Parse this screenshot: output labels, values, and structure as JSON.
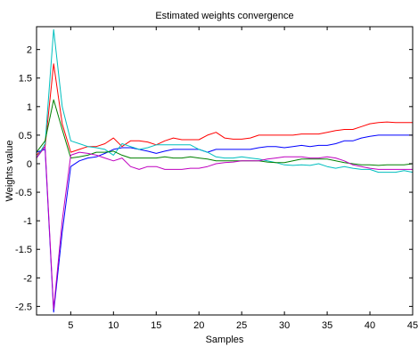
{
  "chart_data": {
    "type": "line",
    "title": "Estimated weights convergence",
    "xlabel": "Samples",
    "ylabel": "Weights value",
    "xlim": [
      1,
      45
    ],
    "ylim": [
      -2.65,
      2.4
    ],
    "grid": false,
    "xticks": [
      5,
      10,
      15,
      20,
      25,
      30,
      35,
      40,
      45
    ],
    "yticks": [
      2,
      1.5,
      1,
      0.5,
      0,
      -0.5,
      -1,
      -1.5,
      -2,
      -2.5
    ],
    "xtick_labels": [
      "5",
      "10",
      "15",
      "20",
      "25",
      "30",
      "35",
      "40",
      "45"
    ],
    "ytick_labels": [
      "2",
      "1.5",
      "1",
      "0.5",
      "0",
      "-0.5",
      "-1",
      "-1.5",
      "-2",
      "-2.5"
    ],
    "series": [
      {
        "color": "#ff0000",
        "x": [
          1,
          2,
          3,
          4,
          5,
          6,
          7,
          8,
          9,
          10,
          11,
          12,
          13,
          14,
          15,
          16,
          17,
          18,
          19,
          20,
          21,
          22,
          23,
          24,
          25,
          26,
          27,
          28,
          29,
          30,
          31,
          32,
          33,
          34,
          35,
          36,
          37,
          38,
          39,
          40,
          41,
          42,
          43,
          44,
          45
        ],
        "y": [
          0.15,
          0.3,
          1.75,
          0.7,
          0.2,
          0.25,
          0.3,
          0.3,
          0.35,
          0.45,
          0.3,
          0.4,
          0.4,
          0.38,
          0.33,
          0.4,
          0.45,
          0.42,
          0.42,
          0.42,
          0.5,
          0.55,
          0.45,
          0.43,
          0.43,
          0.45,
          0.5,
          0.5,
          0.5,
          0.5,
          0.5,
          0.52,
          0.52,
          0.52,
          0.55,
          0.58,
          0.6,
          0.6,
          0.65,
          0.7,
          0.72,
          0.73,
          0.72,
          0.72,
          0.72
        ]
      },
      {
        "color": "#0000ff",
        "x": [
          1,
          2,
          3,
          4,
          5,
          6,
          7,
          8,
          9,
          10,
          11,
          12,
          13,
          14,
          15,
          16,
          17,
          18,
          19,
          20,
          21,
          22,
          23,
          24,
          25,
          26,
          27,
          28,
          29,
          30,
          31,
          32,
          33,
          34,
          35,
          36,
          37,
          38,
          39,
          40,
          41,
          42,
          43,
          44,
          45
        ],
        "y": [
          0.2,
          0.25,
          -2.6,
          -1.2,
          -0.05,
          0.05,
          0.1,
          0.12,
          0.18,
          0.25,
          0.28,
          0.28,
          0.25,
          0.22,
          0.18,
          0.22,
          0.25,
          0.25,
          0.25,
          0.25,
          0.2,
          0.25,
          0.25,
          0.25,
          0.25,
          0.25,
          0.28,
          0.3,
          0.3,
          0.28,
          0.3,
          0.32,
          0.3,
          0.32,
          0.32,
          0.35,
          0.4,
          0.4,
          0.45,
          0.48,
          0.5,
          0.5,
          0.5,
          0.5,
          0.5
        ]
      },
      {
        "color": "#00bfbf",
        "x": [
          1,
          2,
          3,
          4,
          5,
          6,
          7,
          8,
          9,
          10,
          11,
          12,
          13,
          14,
          15,
          16,
          17,
          18,
          19,
          20,
          21,
          22,
          23,
          24,
          25,
          26,
          27,
          28,
          29,
          30,
          31,
          32,
          33,
          34,
          35,
          36,
          37,
          38,
          39,
          40,
          41,
          42,
          43,
          44,
          45
        ],
        "y": [
          0.1,
          0.35,
          2.35,
          1.0,
          0.4,
          0.35,
          0.3,
          0.28,
          0.25,
          0.15,
          0.35,
          0.3,
          0.25,
          0.28,
          0.33,
          0.33,
          0.33,
          0.33,
          0.33,
          0.25,
          0.2,
          0.12,
          0.1,
          0.1,
          0.12,
          0.1,
          0.08,
          0.05,
          0.02,
          -0.02,
          -0.03,
          -0.02,
          -0.03,
          0.0,
          -0.05,
          -0.08,
          -0.05,
          -0.08,
          -0.1,
          -0.1,
          -0.15,
          -0.15,
          -0.15,
          -0.12,
          -0.15
        ]
      },
      {
        "color": "#008000",
        "x": [
          1,
          2,
          3,
          4,
          5,
          6,
          7,
          8,
          9,
          10,
          11,
          12,
          13,
          14,
          15,
          16,
          17,
          18,
          19,
          20,
          21,
          22,
          23,
          24,
          25,
          26,
          27,
          28,
          29,
          30,
          31,
          32,
          33,
          34,
          35,
          36,
          37,
          38,
          39,
          40,
          41,
          42,
          43,
          44,
          45
        ],
        "y": [
          0.2,
          0.4,
          1.12,
          0.6,
          0.1,
          0.12,
          0.15,
          0.2,
          0.2,
          0.22,
          0.15,
          0.1,
          0.1,
          0.1,
          0.1,
          0.12,
          0.1,
          0.1,
          0.12,
          0.1,
          0.08,
          0.05,
          0.05,
          0.05,
          0.05,
          0.05,
          0.05,
          0.03,
          0.02,
          0.02,
          0.05,
          0.08,
          0.08,
          0.08,
          0.08,
          0.05,
          0.02,
          0.0,
          -0.02,
          -0.02,
          -0.03,
          -0.02,
          -0.02,
          -0.02,
          0.0
        ]
      },
      {
        "color": "#bf00bf",
        "x": [
          1,
          2,
          3,
          4,
          5,
          6,
          7,
          8,
          9,
          10,
          11,
          12,
          13,
          14,
          15,
          16,
          17,
          18,
          19,
          20,
          21,
          22,
          23,
          24,
          25,
          26,
          27,
          28,
          29,
          30,
          31,
          32,
          33,
          34,
          35,
          36,
          37,
          38,
          39,
          40,
          41,
          42,
          43,
          44,
          45
        ],
        "y": [
          0.1,
          0.3,
          -2.55,
          -1.0,
          0.15,
          0.2,
          0.18,
          0.15,
          0.1,
          0.05,
          0.1,
          -0.05,
          -0.1,
          -0.05,
          -0.05,
          -0.1,
          -0.1,
          -0.1,
          -0.08,
          -0.08,
          -0.05,
          0.0,
          0.02,
          0.03,
          0.05,
          0.05,
          0.05,
          0.08,
          0.1,
          0.12,
          0.12,
          0.12,
          0.1,
          0.1,
          0.12,
          0.1,
          0.05,
          -0.02,
          -0.05,
          -0.08,
          -0.1,
          -0.1,
          -0.1,
          -0.1,
          -0.1
        ]
      }
    ]
  }
}
